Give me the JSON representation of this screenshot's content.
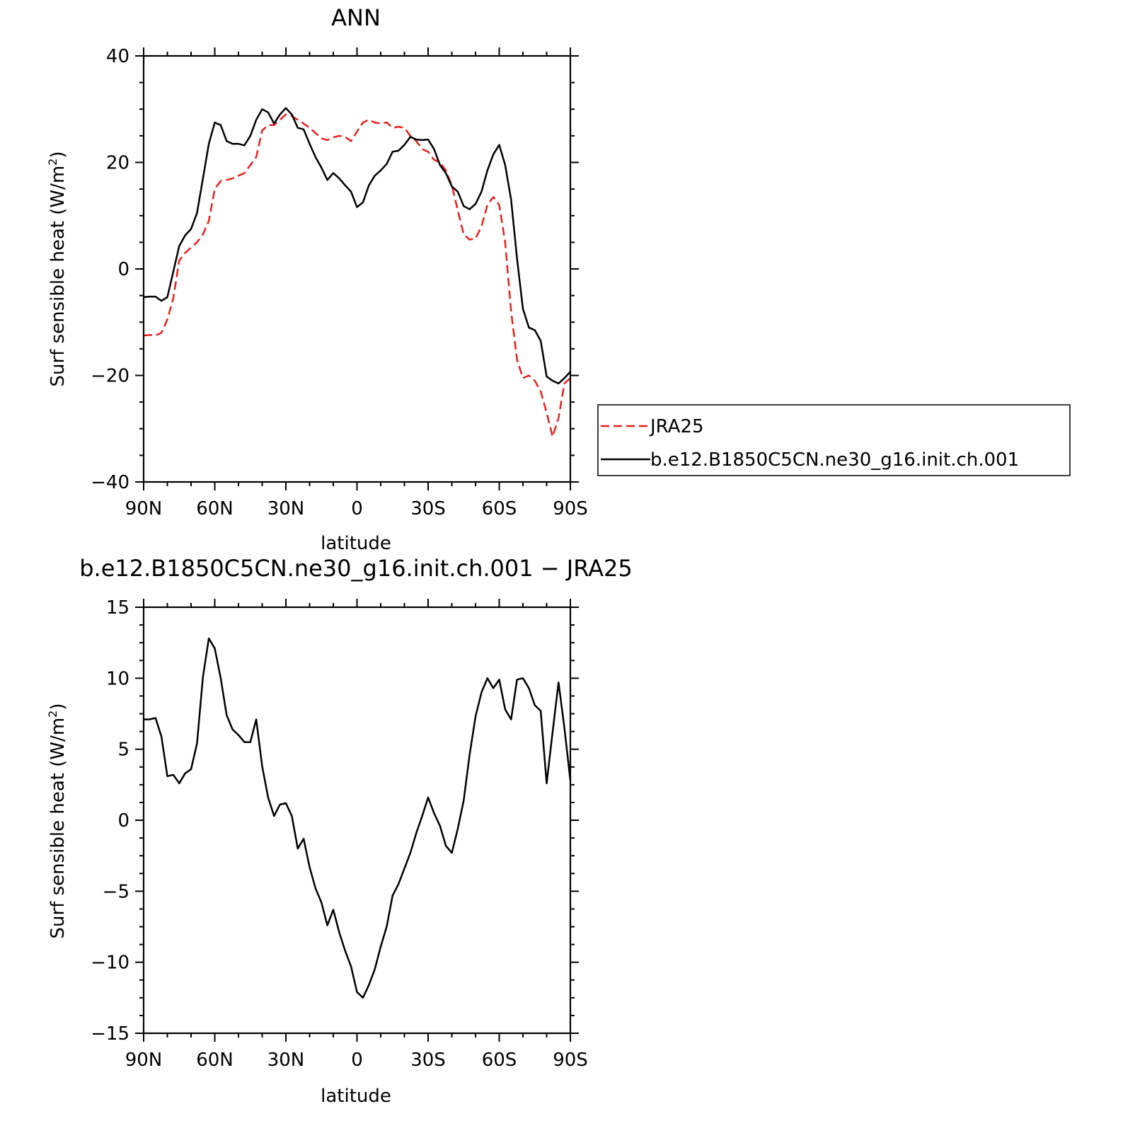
{
  "chart_data": [
    {
      "type": "line",
      "title": "ANN",
      "xlabel": "latitude",
      "ylabel": "Surf sensible heat (W/m2)",
      "ylabel_base": "Surf sensible heat (W/m",
      "ylabel_sup": "2",
      "ylabel_close": ")",
      "ylim": [
        -40,
        40
      ],
      "yticks": [
        -40,
        -20,
        0,
        20,
        40
      ],
      "ytick_labels": [
        "−40",
        "−20",
        "0",
        "20",
        "40"
      ],
      "xlim": [
        90,
        -90
      ],
      "xticks": [
        90,
        60,
        30,
        0,
        -30,
        -60,
        -90
      ],
      "xtick_labels": [
        "90N",
        "60N",
        "30N",
        "0",
        "30S",
        "60S",
        "90S"
      ],
      "legend_position": "right, outside plot",
      "series": [
        {
          "name": "JRA25",
          "color": "#e8201c",
          "dash": "dashed",
          "x": [
            90,
            87.5,
            85,
            82.5,
            80,
            77.5,
            75,
            72.5,
            70,
            67.5,
            65,
            62.5,
            60,
            57.5,
            55,
            52.5,
            50,
            47.5,
            45,
            42.5,
            40,
            37.5,
            35,
            32.5,
            30,
            27.5,
            25,
            22.5,
            20,
            17.5,
            15,
            12.5,
            10,
            7.5,
            5,
            2.5,
            0,
            -2.5,
            -5,
            -7.5,
            -10,
            -12.5,
            -15,
            -17.5,
            -20,
            -22.5,
            -25,
            -27.5,
            -30,
            -32.5,
            -35,
            -37.5,
            -40,
            -42.5,
            -45,
            -47.5,
            -50,
            -52.5,
            -55,
            -57.5,
            -60,
            -62.5,
            -65,
            -67.5,
            -70,
            -72.5,
            -75,
            -77.5,
            -80,
            -82.5,
            -85,
            -87.5,
            -90
          ],
          "values": [
            -12.5,
            -12.4,
            -12.5,
            -12,
            -9.5,
            -5.5,
            1.6,
            3,
            4,
            5,
            6.5,
            9,
            15,
            16.5,
            16.7,
            17,
            17.5,
            18,
            19.5,
            21,
            26,
            27,
            27,
            28,
            29,
            28.7,
            28,
            27.3,
            26.5,
            25.5,
            24.5,
            24.2,
            24.7,
            25,
            24.8,
            24,
            25.8,
            27.5,
            28,
            27.5,
            27.3,
            27.5,
            26.5,
            26.7,
            26.5,
            25,
            24,
            22.5,
            22,
            20.5,
            20,
            18.5,
            15.7,
            11,
            6.5,
            5.5,
            5.7,
            8,
            12,
            13.5,
            12,
            5,
            -8,
            -17,
            -20.5,
            -20,
            -21,
            -23,
            -27,
            -31.5,
            -28,
            -21.5,
            -20.5
          ]
        },
        {
          "name": "b.e12.B1850C5CN.ne30_g16.init.ch.001",
          "color": "#000000",
          "dash": "solid",
          "x": [
            90,
            87.5,
            85,
            82.5,
            80,
            77.5,
            75,
            72.5,
            70,
            67.5,
            65,
            62.5,
            60,
            57.5,
            55,
            52.5,
            50,
            47.5,
            45,
            42.5,
            40,
            37.5,
            35,
            32.5,
            30,
            27.5,
            25,
            22.5,
            20,
            17.5,
            15,
            12.5,
            10,
            7.5,
            5,
            2.5,
            0,
            -2.5,
            -5,
            -7.5,
            -10,
            -12.5,
            -15,
            -17.5,
            -20,
            -22.5,
            -25,
            -27.5,
            -30,
            -32.5,
            -35,
            -37.5,
            -40,
            -42.5,
            -45,
            -47.5,
            -50,
            -52.5,
            -55,
            -57.5,
            -60,
            -62.5,
            -65,
            -67.5,
            -70,
            -72.5,
            -75,
            -77.5,
            -80,
            -82.5,
            -85,
            -87.5,
            -90
          ],
          "values": [
            -5.3,
            -5.2,
            -5.2,
            -6,
            -5.3,
            -0.5,
            4.3,
            6.3,
            7.5,
            10.5,
            17,
            23.5,
            27.5,
            27,
            24,
            23.5,
            23.5,
            23.2,
            25,
            28,
            30,
            29.4,
            27.3,
            29,
            30.2,
            29,
            26.5,
            26.2,
            23.5,
            21,
            19,
            16.7,
            18,
            17,
            15.7,
            14.5,
            11.6,
            12.5,
            15.7,
            17.5,
            18.5,
            19.7,
            22,
            22.2,
            23.3,
            24.8,
            24.3,
            24.2,
            24.3,
            22.5,
            19.5,
            18,
            15.5,
            14.5,
            11.8,
            11.2,
            12.2,
            14.5,
            18.5,
            21.5,
            23.3,
            19.5,
            13,
            2,
            -7.5,
            -11,
            -11.5,
            -13.5,
            -20.2,
            -21,
            -21.5,
            -20.5,
            -19.3
          ]
        }
      ]
    },
    {
      "type": "line",
      "title": "b.e12.B1850C5CN.ne30_g16.init.ch.001 − JRA25",
      "xlabel": "latitude",
      "ylabel": "Surf sensible heat (W/m2)",
      "ylabel_base": "Surf sensible heat (W/m",
      "ylabel_sup": "2",
      "ylabel_close": ")",
      "ylim": [
        -15,
        15
      ],
      "yticks": [
        -15,
        -10,
        -5,
        0,
        5,
        10,
        15
      ],
      "ytick_labels": [
        "−15",
        "−10",
        "−5",
        "0",
        "5",
        "10",
        "15"
      ],
      "xlim": [
        90,
        -90
      ],
      "xticks": [
        90,
        60,
        30,
        0,
        -30,
        -60,
        -90
      ],
      "xtick_labels": [
        "90N",
        "60N",
        "30N",
        "0",
        "30S",
        "60S",
        "90S"
      ],
      "series": [
        {
          "color": "#000000",
          "dash": "solid",
          "x": [
            90,
            87.5,
            85,
            82.5,
            80,
            77.5,
            75,
            72.5,
            70,
            67.5,
            65,
            62.5,
            60,
            57.5,
            55,
            52.5,
            50,
            47.5,
            45,
            42.5,
            40,
            37.5,
            35,
            32.5,
            30,
            27.5,
            25,
            22.5,
            20,
            17.5,
            15,
            12.5,
            10,
            7.5,
            5,
            2.5,
            0,
            -2.5,
            -5,
            -7.5,
            -10,
            -12.5,
            -15,
            -17.5,
            -20,
            -22.5,
            -25,
            -27.5,
            -30,
            -32.5,
            -35,
            -37.5,
            -40,
            -42.5,
            -45,
            -47.5,
            -50,
            -52.5,
            -55,
            -57.5,
            -60,
            -62.5,
            -65,
            -67.5,
            -70,
            -72.5,
            -75,
            -77.5,
            -80,
            -82.5,
            -85,
            -87.5,
            -90
          ],
          "values": [
            7.1,
            7.1,
            7.2,
            5.9,
            3.1,
            3.2,
            2.6,
            3.3,
            3.6,
            5.4,
            10.1,
            12.8,
            12.1,
            10,
            7.4,
            6.4,
            6,
            5.5,
            5.5,
            7.1,
            3.8,
            1.6,
            0.3,
            1.1,
            1.2,
            0.3,
            -2,
            -1.3,
            -3.3,
            -4.8,
            -5.8,
            -7.4,
            -6.3,
            -7.9,
            -9.2,
            -10.3,
            -12.1,
            -12.5,
            -11.6,
            -10.5,
            -8.9,
            -7.5,
            -5.3,
            -4.5,
            -3.4,
            -2.3,
            -0.9,
            0.3,
            1.6,
            0.5,
            -0.4,
            -1.8,
            -2.3,
            -0.6,
            1.4,
            4.6,
            7.3,
            9,
            10,
            9.3,
            9.9,
            7.8,
            7.1,
            9.9,
            10,
            9.3,
            8.1,
            7.7,
            2.6,
            6.2,
            9.7,
            6.5,
            2.8
          ]
        }
      ]
    }
  ]
}
